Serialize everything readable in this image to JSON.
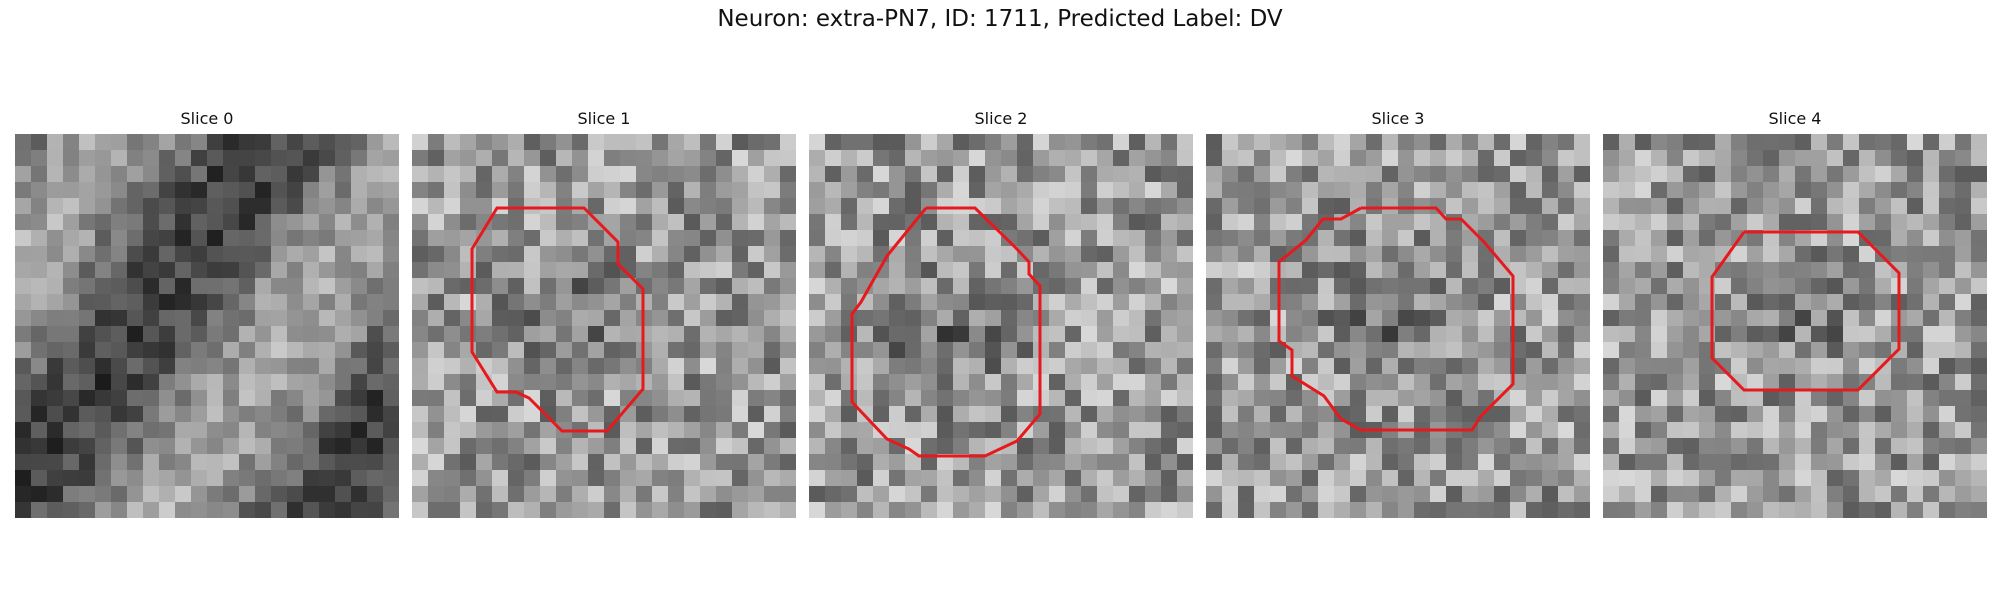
{
  "figure": {
    "title": "Neuron: extra-PN7, ID: 1711, Predicted Label: DV",
    "outline_color": "#e6191c"
  },
  "slices": [
    {
      "label": "Slice 0",
      "has_outline": false
    },
    {
      "label": "Slice 1",
      "has_outline": true
    },
    {
      "label": "Slice 2",
      "has_outline": true
    },
    {
      "label": "Slice 3",
      "has_outline": true
    },
    {
      "label": "Slice 4",
      "has_outline": true
    }
  ]
}
